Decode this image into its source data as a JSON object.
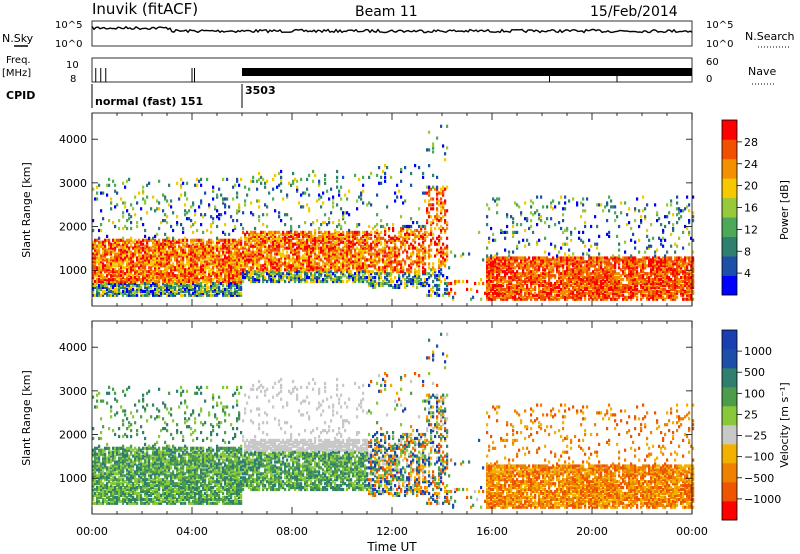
{
  "header": {
    "station": "Inuvik (fitACF)",
    "beam": "Beam 11",
    "date": "15/Feb/2014"
  },
  "strip_labels": {
    "nsky": "N.Sky",
    "freq_1": "Freq.",
    "freq_2": "[MHz]",
    "cpid": "CPID",
    "nsearch": "N.Search",
    "nave": "Nave",
    "nsky_ticks": [
      "10^5",
      "10^0"
    ],
    "nsearch_ticks": [
      "10^5",
      "10^0"
    ],
    "freq_ticks": [
      "10",
      "8"
    ],
    "nave_ticks": [
      "60",
      "0"
    ],
    "cpid_blocks": [
      {
        "label": "normal (fast) 151",
        "start": "00:00"
      },
      {
        "label": "3503",
        "start": "06:00"
      }
    ]
  },
  "colors": {
    "power_scale": [
      "#0000ff",
      "#1b4fa8",
      "#2f7f6e",
      "#4ea85a",
      "#98c93a",
      "#f5c800",
      "#f29000",
      "#f05000",
      "#ff0000"
    ],
    "velocity_scale": [
      "#1a3fb0",
      "#1b4fa8",
      "#2f7f6e",
      "#4c9c4c",
      "#88c83a",
      "#c8c8c8",
      "#f2b000",
      "#f08000",
      "#ee5500",
      "#ff0000"
    ]
  },
  "chart_data": [
    {
      "type": "heatmap",
      "title": "",
      "xlabel": "Time UT",
      "ylabel": "Slant Range [km]",
      "x_ticks": [
        "00:00",
        "04:00",
        "08:00",
        "12:00",
        "16:00",
        "20:00",
        "00:00"
      ],
      "y_ticks": [
        "1000",
        "2000",
        "3000",
        "4000"
      ],
      "xlim": [
        "00:00",
        "24:00"
      ],
      "ylim": [
        180,
        4600
      ],
      "colorbar_label": "Power [dB]",
      "colorbar_ticks": [
        "4",
        "8",
        "12",
        "16",
        "20",
        "24",
        "28"
      ],
      "clim": [
        0,
        30
      ]
    },
    {
      "type": "heatmap",
      "title": "",
      "xlabel": "Time UT",
      "ylabel": "Slant Range [km]",
      "x_ticks": [
        "00:00",
        "04:00",
        "08:00",
        "12:00",
        "16:00",
        "20:00",
        "00:00"
      ],
      "y_ticks": [
        "1000",
        "2000",
        "3000",
        "4000"
      ],
      "xlim": [
        "00:00",
        "24:00"
      ],
      "ylim": [
        180,
        4600
      ],
      "colorbar_label": "Velocity [m s⁻¹]",
      "colorbar_ticks": [
        "1000",
        "500",
        "100",
        "25",
        "−25",
        "−100",
        "−500",
        "−1000"
      ]
    }
  ]
}
